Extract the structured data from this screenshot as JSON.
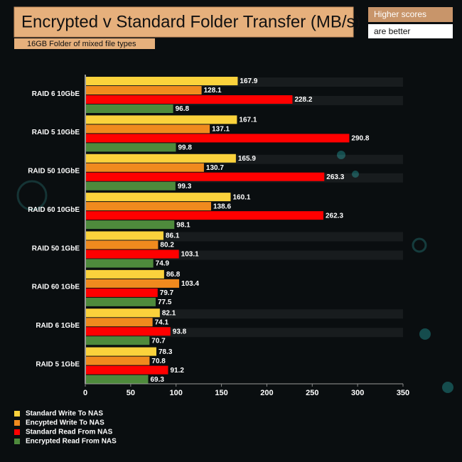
{
  "chart_data": {
    "type": "hbar",
    "title": "Encrypted v Standard Folder Transfer (MB/s)",
    "subtitle": "16GB Folder of mixed file types",
    "annotations": [
      "Higher scores",
      "are better"
    ],
    "categories": [
      "RAID 6 10GbE",
      "RAID 5 10GbE",
      "RAID 50 10GbE",
      "RAID 60 10GbE",
      "RAID 50 1GbE",
      "RAID 60 1GbE",
      "RAID 6 1GbE",
      "RAID 5 1GbE"
    ],
    "series": [
      {
        "name": "Standard Write To NAS",
        "color": "#fbd23c",
        "values": [
          167.9,
          167.1,
          165.9,
          160.1,
          86.1,
          86.8,
          82.1,
          78.3
        ]
      },
      {
        "name": "Encypted Write To NAS",
        "color": "#f08a1e",
        "values": [
          128.1,
          137.1,
          130.7,
          138.6,
          80.2,
          103.4,
          74.1,
          70.8
        ]
      },
      {
        "name": "Standard Read From NAS",
        "color": "#ff0000",
        "values": [
          228.2,
          290.8,
          263.3,
          262.3,
          103.1,
          79.7,
          93.8,
          91.2
        ]
      },
      {
        "name": "Encrypted Read From NAS",
        "color": "#4e8a3c",
        "values": [
          96.8,
          99.8,
          99.3,
          98.1,
          74.9,
          77.5,
          70.7,
          69.3
        ]
      }
    ],
    "xlim": [
      0,
      350
    ],
    "xticks": [
      0,
      50,
      100,
      150,
      200,
      250,
      300,
      350
    ]
  }
}
